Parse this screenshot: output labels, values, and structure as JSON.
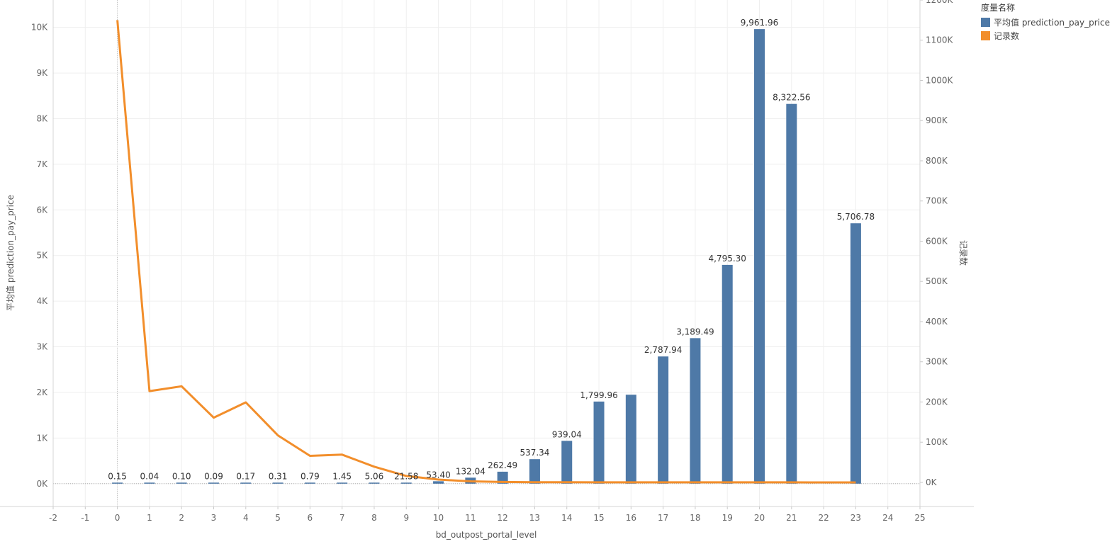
{
  "legend": {
    "title": "度量名称",
    "items": [
      {
        "label": "平均值 prediction_pay_price",
        "color": "#4e79a7"
      },
      {
        "label": "记录数",
        "color": "#f28e2b"
      }
    ]
  },
  "chart_data": {
    "type": "bar",
    "xlabel": "bd_outpost_portal_level",
    "ylabel": "平均值 prediction_pay_price",
    "y2label": "记录数",
    "xlim": [
      -2,
      25
    ],
    "x_ticks": [
      -2,
      -1,
      0,
      1,
      2,
      3,
      4,
      5,
      6,
      7,
      8,
      9,
      10,
      11,
      12,
      13,
      14,
      15,
      16,
      17,
      18,
      19,
      20,
      21,
      22,
      23,
      24,
      25
    ],
    "ylim": [
      -500,
      10600
    ],
    "y_ticks": [
      "0K",
      "1K",
      "2K",
      "3K",
      "4K",
      "5K",
      "6K",
      "7K",
      "8K",
      "9K",
      "10K"
    ],
    "y2lim": [
      -60000,
      1200000
    ],
    "y2_ticks": [
      "0K",
      "100K",
      "200K",
      "300K",
      "400K",
      "500K",
      "600K",
      "700K",
      "800K",
      "900K",
      "1000K",
      "1100K",
      "1200K"
    ],
    "grid": true,
    "legend_position": "top-right",
    "series": [
      {
        "name": "平均值 prediction_pay_price",
        "type": "bar",
        "axis": "left",
        "color": "#4e79a7",
        "x": [
          0,
          1,
          2,
          3,
          4,
          5,
          6,
          7,
          8,
          9,
          10,
          11,
          12,
          13,
          14,
          15,
          16,
          17,
          18,
          19,
          20,
          21,
          23
        ],
        "values": [
          0.15,
          0.04,
          0.1,
          0.09,
          0.17,
          0.31,
          0.79,
          1.45,
          5.06,
          21.58,
          53.4,
          132.04,
          262.49,
          537.34,
          939.04,
          1799.96,
          1950,
          2787.94,
          3189.49,
          4795.3,
          9961.96,
          8322.56,
          5706.78
        ],
        "labels": [
          "0.15",
          "0.04",
          "0.10",
          "0.09",
          "0.17",
          "0.31",
          "0.79",
          "1.45",
          "5.06",
          "21.58",
          "53.40",
          "132.04",
          "262.49",
          "537.34",
          "939.04",
          "1,799.96",
          "",
          "2,787.94",
          "3,189.49",
          "4,795.30",
          "9,961.96",
          "8,322.56",
          "5,706.78"
        ]
      },
      {
        "name": "记录数",
        "type": "line",
        "axis": "right",
        "color": "#f28e2b",
        "x": [
          0,
          1,
          2,
          3,
          4,
          5,
          6,
          7,
          8,
          9,
          10,
          11,
          12,
          13,
          14,
          15,
          16,
          17,
          18,
          19,
          20,
          21,
          22,
          23
        ],
        "values": [
          1150000,
          227000,
          239000,
          161000,
          199000,
          117000,
          66000,
          69000,
          39000,
          16000,
          7000,
          2500,
          1000,
          500,
          200,
          100,
          50,
          30,
          20,
          10,
          5,
          5,
          2,
          2
        ]
      }
    ]
  }
}
